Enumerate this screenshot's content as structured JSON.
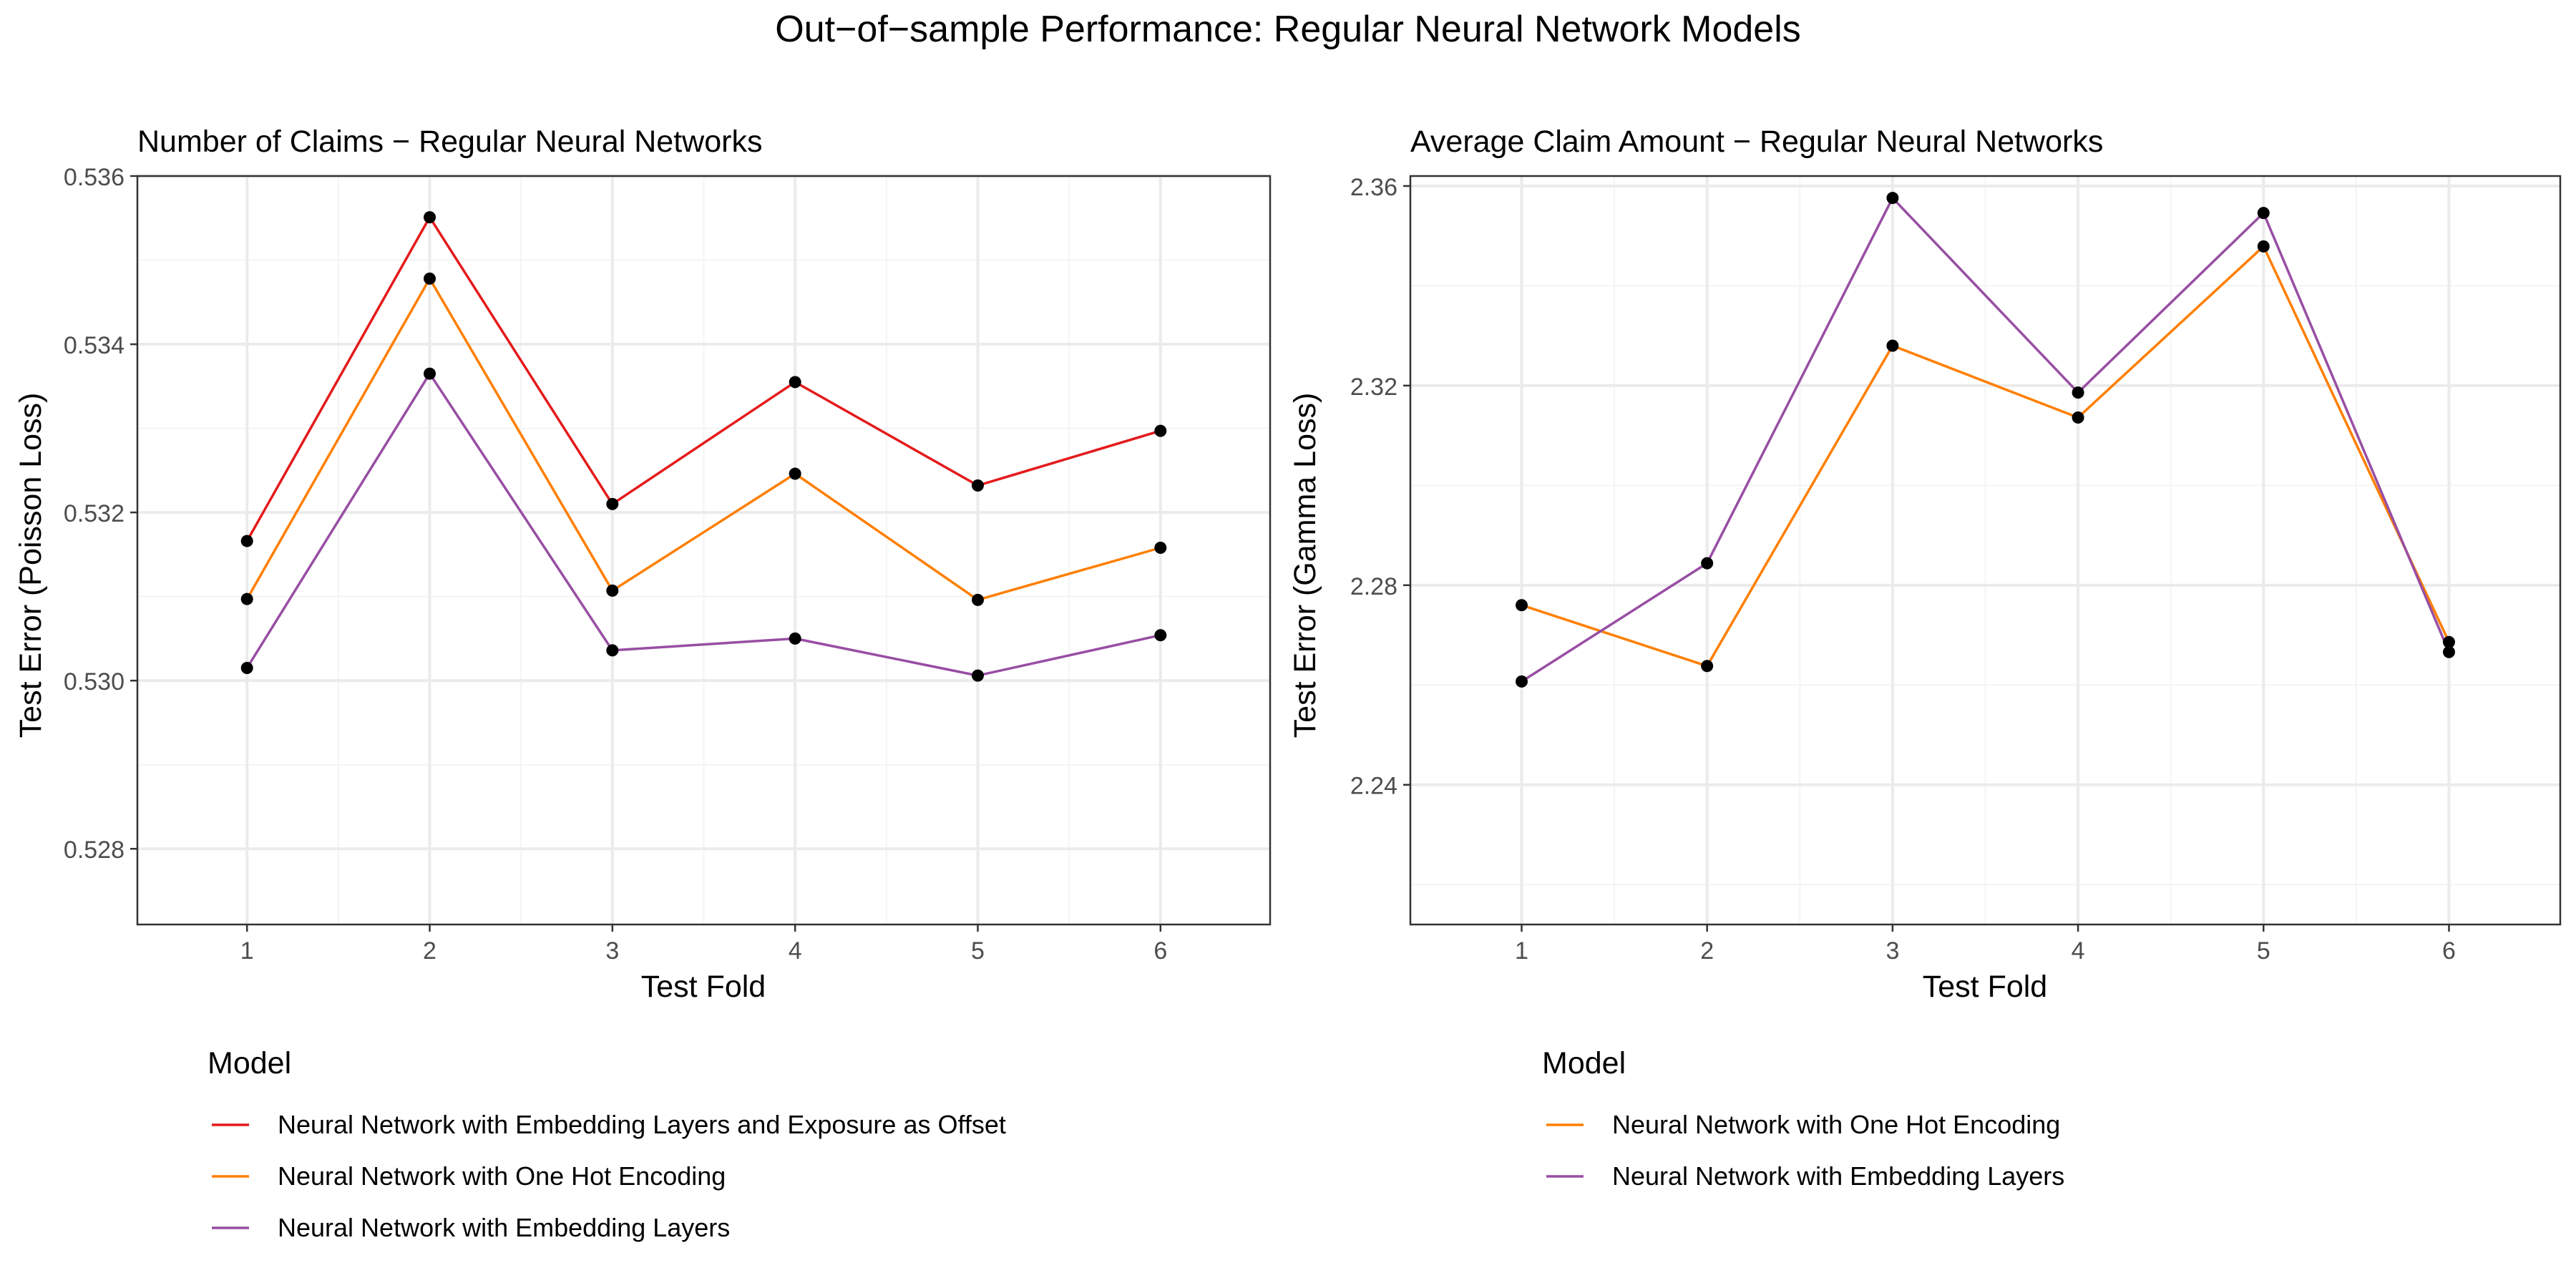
{
  "figure": {
    "title": "Out−of−sample Performance: Regular Neural Network Models"
  },
  "colors": {
    "red": "#e41a1c",
    "orange": "#ff7f00",
    "purple": "#984ea3",
    "point": "#000000",
    "grid_major": "#ebebeb",
    "grid_minor": "#f4f4f4",
    "panel_border": "#333333"
  },
  "chart_data": [
    {
      "type": "line",
      "title": "Number of Claims − Regular Neural Networks",
      "xlabel": "Test Fold",
      "ylabel": "Test Error (Poisson Loss)",
      "x": [
        1,
        2,
        3,
        4,
        5,
        6
      ],
      "xlim": [
        0.4,
        6.6
      ],
      "ylim": [
        0.5271,
        0.536
      ],
      "y_ticks": [
        "0.528",
        "0.530",
        "0.532",
        "0.534",
        "0.536"
      ],
      "y_tick_values": [
        0.528,
        0.53,
        0.532,
        0.534,
        0.536
      ],
      "y_minor_ticks": [
        0.529,
        0.531,
        0.533,
        0.535
      ],
      "grid": true,
      "legend_position": "bottom",
      "legend_title": "Model",
      "series": [
        {
          "name": "Neural Network with Embedding Layers and Exposure as Offset",
          "color": "#e41a1c",
          "values": [
            0.53166,
            0.53551,
            0.5321,
            0.53355,
            0.53232,
            0.53297
          ]
        },
        {
          "name": "Neural Network with One Hot Encoding",
          "color": "#ff7f00",
          "values": [
            0.53097,
            0.53478,
            0.53107,
            0.53246,
            0.53096,
            0.53158
          ]
        },
        {
          "name": "Neural Network with Embedding Layers",
          "color": "#984ea3",
          "values": [
            0.53015,
            0.53365,
            0.53036,
            0.5305,
            0.53006,
            0.53054
          ]
        }
      ]
    },
    {
      "type": "line",
      "title": "Average Claim Amount − Regular Neural Networks",
      "xlabel": "Test Fold",
      "ylabel": "Test Error (Gamma Loss)",
      "x": [
        1,
        2,
        3,
        4,
        5,
        6
      ],
      "xlim": [
        0.4,
        6.6
      ],
      "ylim": [
        2.212,
        2.362
      ],
      "y_ticks": [
        "2.24",
        "2.28",
        "2.32",
        "2.36"
      ],
      "y_tick_values": [
        2.24,
        2.28,
        2.32,
        2.36
      ],
      "y_minor_ticks": [
        2.22,
        2.26,
        2.3,
        2.34
      ],
      "grid": true,
      "legend_position": "bottom",
      "legend_title": "Model",
      "series": [
        {
          "name": "Neural Network with One Hot Encoding",
          "color": "#ff7f00",
          "values": [
            2.276,
            2.2638,
            2.328,
            2.3136,
            2.3479,
            2.2686
          ]
        },
        {
          "name": "Neural Network with Embedding Layers",
          "color": "#984ea3",
          "values": [
            2.2607,
            2.2844,
            2.3576,
            2.3186,
            2.3546,
            2.2666
          ]
        }
      ]
    }
  ]
}
